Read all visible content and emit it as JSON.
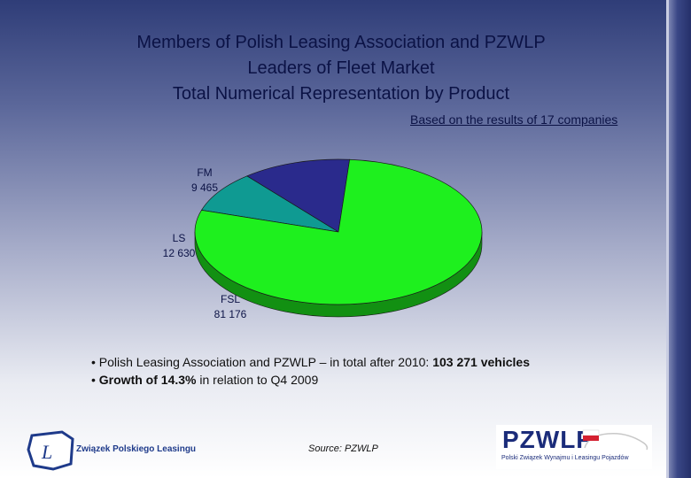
{
  "title_lines": [
    "Members of Polish Leasing Association and PZWLP",
    "Leaders of Fleet Market",
    "Total Numerical Representation by Product"
  ],
  "subnote": "Based on the results of 17 companies",
  "chart_data": {
    "type": "pie",
    "slices": [
      {
        "label": "FM",
        "value": 9465,
        "display": "9 465",
        "color": "#0f9a92"
      },
      {
        "label": "LS",
        "value": 12630,
        "display": "12 630",
        "color": "#2a2a8c"
      },
      {
        "label": "FSL",
        "value": 81176,
        "display": "81 176",
        "color": "#1ef01e"
      }
    ]
  },
  "bullets": {
    "line1_prefix": "• Polish Leasing Association and PZWLP – in total after 2010: ",
    "line1_bold": "103 271 vehicles",
    "line2_prefix": "• ",
    "line2_bold": "Growth of 14.3%",
    "line2_suffix": " in relation to Q4 2009"
  },
  "source": "Source: PZWLP",
  "logos": {
    "zpl_text": "Związek Polskiego Leasingu",
    "zpl_glyph": "L",
    "pz_mark": "PZWLP",
    "pz_sub": "Polski Związek Wynajmu i Leasingu Pojazdów"
  }
}
